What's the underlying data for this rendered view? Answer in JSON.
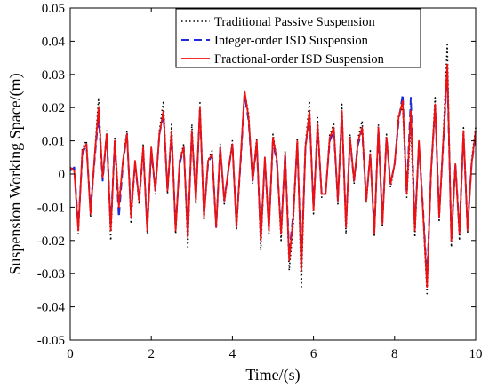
{
  "chart_data": {
    "type": "line",
    "title": "",
    "xlabel": "Time/(s)",
    "ylabel": "Suspension Working Space/(m)",
    "xlim": [
      0,
      10
    ],
    "ylim": [
      -0.05,
      0.05
    ],
    "x_ticks": [
      0,
      2,
      4,
      6,
      8,
      10
    ],
    "x_tick_labels": [
      "0",
      "2",
      "4",
      "6",
      "8",
      "10"
    ],
    "y_ticks": [
      -0.05,
      -0.04,
      -0.03,
      -0.02,
      -0.01,
      0,
      0.01,
      0.02,
      0.03,
      0.04,
      0.05
    ],
    "y_tick_labels": [
      "-0.05",
      "-0.04",
      "-0.03",
      "-0.02",
      "-0.01",
      "0",
      "0.01",
      "0.02",
      "0.03",
      "0.04",
      "0.05"
    ],
    "grid": false,
    "legend_position": "top-right",
    "x": [
      0,
      0.1,
      0.2,
      0.3,
      0.4,
      0.5,
      0.6,
      0.7,
      0.8,
      0.9,
      1,
      1.1,
      1.2,
      1.3,
      1.4,
      1.5,
      1.6,
      1.7,
      1.8,
      1.9,
      2,
      2.1,
      2.2,
      2.3,
      2.4,
      2.5,
      2.6,
      2.7,
      2.8,
      2.9,
      3,
      3.1,
      3.2,
      3.3,
      3.4,
      3.5,
      3.6,
      3.7,
      3.8,
      3.9,
      4,
      4.1,
      4.2,
      4.3,
      4.4,
      4.5,
      4.6,
      4.7,
      4.8,
      4.9,
      5,
      5.1,
      5.2,
      5.3,
      5.4,
      5.5,
      5.6,
      5.7,
      5.8,
      5.9,
      6,
      6.1,
      6.2,
      6.3,
      6.4,
      6.5,
      6.6,
      6.7,
      6.8,
      6.9,
      7,
      7.1,
      7.2,
      7.3,
      7.4,
      7.5,
      7.6,
      7.7,
      7.8,
      7.9,
      8,
      8.1,
      8.2,
      8.3,
      8.4,
      8.5,
      8.6,
      8.7,
      8.8,
      8.9,
      9,
      9.1,
      9.2,
      9.3,
      9.4,
      9.5,
      9.6,
      9.7,
      9.8,
      9.9,
      10
    ],
    "series": [
      {
        "name": "Traditional Passive Suspension",
        "color": "#000000",
        "style": "dotted",
        "values": [
          0.002,
          0.001,
          -0.018,
          0.008,
          0.01,
          -0.013,
          0.005,
          0.023,
          -0.002,
          0.013,
          -0.02,
          0.011,
          -0.009,
          0.004,
          0.013,
          -0.015,
          0.004,
          -0.009,
          0.009,
          -0.018,
          0.008,
          -0.006,
          0.013,
          0.022,
          -0.006,
          0.015,
          -0.018,
          0.004,
          0.009,
          -0.022,
          0.015,
          -0.009,
          0.022,
          -0.014,
          0.004,
          0.007,
          -0.016,
          0.009,
          -0.009,
          0.001,
          0.01,
          -0.017,
          0.004,
          0.025,
          0.018,
          -0.003,
          0.011,
          -0.023,
          0.005,
          -0.018,
          0.012,
          0.004,
          -0.02,
          0.007,
          -0.029,
          -0.015,
          0.011,
          -0.034,
          0.009,
          0.022,
          -0.012,
          0.017,
          -0.007,
          -0.006,
          0.012,
          0.015,
          -0.009,
          0.021,
          -0.018,
          0.012,
          -0.003,
          0.011,
          0.016,
          -0.009,
          0.007,
          -0.019,
          0.015,
          -0.016,
          0.012,
          -0.004,
          0.003,
          0.018,
          0.02,
          -0.007,
          0.015,
          -0.019,
          0.01,
          -0.012,
          -0.036,
          0.001,
          0.023,
          -0.014,
          0.011,
          0.039,
          -0.022,
          0.003,
          -0.02,
          0.014,
          -0.018,
          0.004,
          0.014
        ]
      },
      {
        "name": "Integer-order ISD Suspension",
        "color": "#1f2bd6",
        "style": "dashed",
        "values": [
          0.001,
          0.002,
          -0.016,
          0.006,
          0.009,
          -0.011,
          0.004,
          0.018,
          -0.002,
          0.012,
          -0.016,
          0.01,
          -0.013,
          0.003,
          0.012,
          -0.012,
          0.003,
          -0.008,
          0.007,
          -0.016,
          0.007,
          -0.005,
          0.012,
          0.018,
          -0.005,
          0.012,
          -0.016,
          0.003,
          0.008,
          -0.018,
          0.012,
          -0.007,
          0.019,
          -0.012,
          0.003,
          0.006,
          -0.016,
          0.008,
          -0.008,
          0.001,
          0.009,
          -0.015,
          0.003,
          0.024,
          0.016,
          -0.002,
          0.009,
          -0.019,
          0.004,
          -0.016,
          0.01,
          0.003,
          -0.017,
          0.006,
          -0.024,
          -0.012,
          0.009,
          -0.027,
          0.008,
          0.018,
          -0.01,
          0.014,
          -0.006,
          -0.005,
          0.01,
          0.013,
          -0.008,
          0.018,
          -0.015,
          0.01,
          -0.002,
          0.009,
          0.013,
          -0.008,
          0.006,
          -0.017,
          0.013,
          -0.014,
          0.011,
          -0.003,
          0.003,
          0.016,
          0.024,
          -0.006,
          0.023,
          -0.016,
          0.009,
          -0.01,
          -0.032,
          0.001,
          0.02,
          -0.012,
          0.009,
          0.031,
          -0.019,
          0.003,
          -0.017,
          0.012,
          -0.016,
          0.003,
          0.012
        ]
      },
      {
        "name": "Fractional-order ISD Suspension",
        "color": "#ee1111",
        "style": "solid",
        "values": [
          0.002,
          0.001,
          -0.017,
          0.007,
          0.009,
          -0.012,
          0.005,
          0.02,
          -0.001,
          0.012,
          -0.017,
          0.01,
          -0.01,
          0.004,
          0.012,
          -0.013,
          0.004,
          -0.008,
          0.008,
          -0.017,
          0.008,
          -0.005,
          0.012,
          0.019,
          -0.005,
          0.013,
          -0.017,
          0.004,
          0.008,
          -0.019,
          0.013,
          -0.008,
          0.02,
          -0.013,
          0.004,
          0.006,
          -0.016,
          0.008,
          -0.008,
          0.001,
          0.009,
          -0.016,
          0.004,
          0.025,
          0.017,
          -0.002,
          0.01,
          -0.02,
          0.005,
          -0.017,
          0.011,
          0.004,
          -0.018,
          0.006,
          -0.026,
          -0.013,
          0.01,
          -0.029,
          0.008,
          0.019,
          -0.011,
          0.015,
          -0.006,
          -0.006,
          0.011,
          0.014,
          -0.008,
          0.019,
          -0.016,
          0.011,
          -0.002,
          0.01,
          0.014,
          -0.008,
          0.006,
          -0.018,
          0.014,
          -0.015,
          0.011,
          -0.003,
          0.003,
          0.017,
          0.022,
          -0.006,
          0.019,
          -0.017,
          0.01,
          -0.011,
          -0.034,
          0.001,
          0.021,
          -0.013,
          0.01,
          0.033,
          -0.02,
          0.003,
          -0.018,
          0.013,
          -0.017,
          0.003,
          0.013
        ]
      }
    ]
  }
}
